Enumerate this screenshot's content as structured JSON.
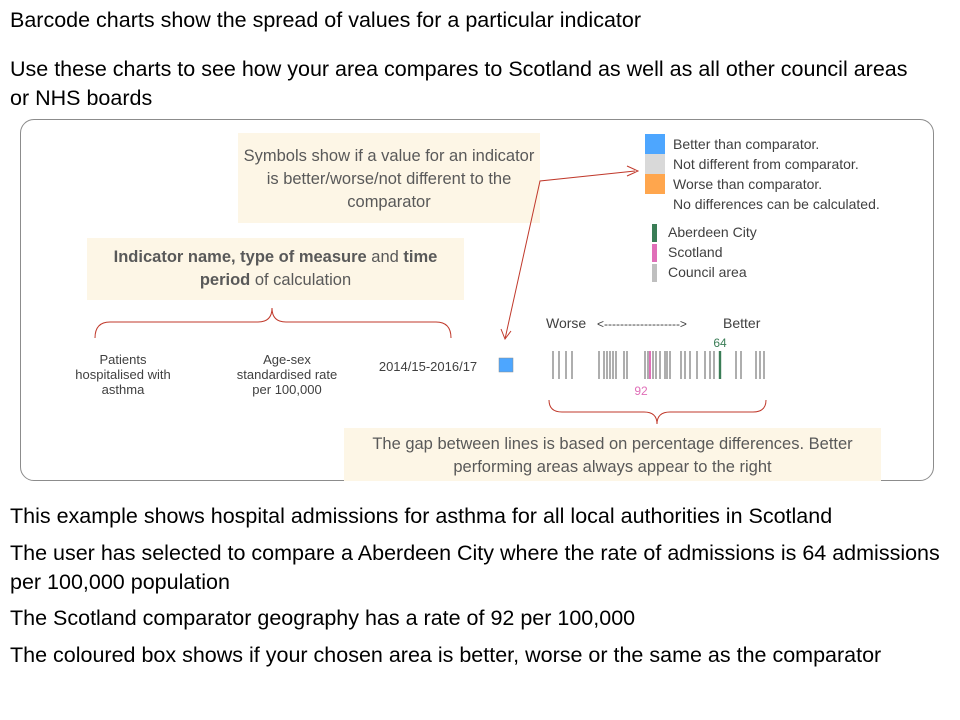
{
  "intro": {
    "line1": "Barcode charts show the spread of values for a particular indicator",
    "line2": "Use these charts to see how your area compares to Scotland as well as all other council areas or NHS boards"
  },
  "callouts": {
    "symbols": "Symbols show if a value for an indicator is better/worse/not different to the comparator",
    "indicator": {
      "bold1": "Indicator name, type of measure",
      "and": " and ",
      "bold2": "time period",
      "rest": " of calculation"
    },
    "gap": "The gap between lines is  based on percentage differences. Better performing areas always appear to the right"
  },
  "legend_symbols": [
    {
      "label": "Better than comparator.",
      "color": "#4da6ff"
    },
    {
      "label": "Not different from comparator.",
      "color": "#d9d9d9"
    },
    {
      "label": "Worse than comparator.",
      "color": "#ffa64d"
    },
    {
      "label": "No differences can be calculated.",
      "color": "#ffffff"
    }
  ],
  "legend_geo": [
    {
      "label": "Aberdeen City",
      "color": "#3a7d56"
    },
    {
      "label": "Scotland",
      "color": "#e06fb8"
    },
    {
      "label": "Council area",
      "color": "#bfbfbf"
    }
  ],
  "example_row": {
    "indicator": "Patients hospitalised with asthma",
    "measure": "Age-sex standardised rate per 100,000",
    "period": "2014/15-2016/17",
    "status_color": "#4da6ff"
  },
  "barcode": {
    "worse_label": "Worse",
    "arrow_text": "<------------------->",
    "better_label": "Better",
    "area_value": "64",
    "scotland_value": "92",
    "area_color": "#3a7d56",
    "scotland_color": "#e06fb8",
    "line_color": "#8c8c8c"
  },
  "bottom": [
    "This example shows hospital admissions for asthma for all local authorities in Scotland",
    "The user has selected to compare a Aberdeen City where the rate of admissions is 64 admissions per 100,000 population",
    "The Scotland comparator geography has a rate of 92 per 100,000",
    "The coloured box shows if your chosen area is better, worse or the same as the comparator"
  ]
}
